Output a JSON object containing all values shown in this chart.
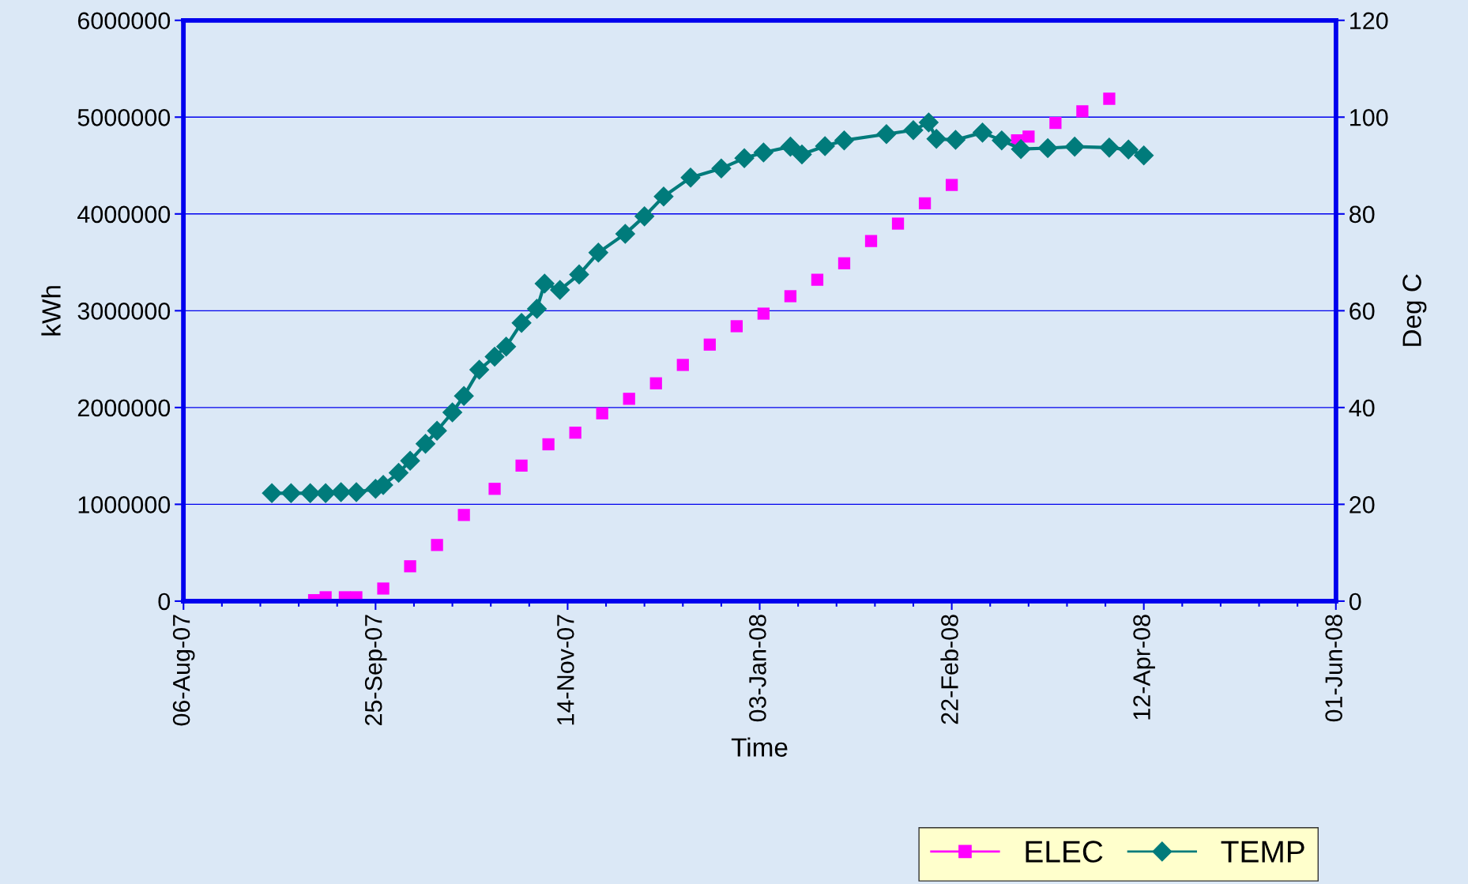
{
  "chart_data": {
    "type": "line",
    "xlabel": "Time",
    "ylabel": "kWh",
    "y2label": "Deg C",
    "xlim": [
      "2007-08-06",
      "2008-06-01"
    ],
    "xticks": [
      {
        "value": "2007-08-06",
        "label": "06-Aug-07"
      },
      {
        "value": "2007-09-25",
        "label": "25-Sep-07"
      },
      {
        "value": "2007-11-14",
        "label": "14-Nov-07"
      },
      {
        "value": "2008-01-03",
        "label": "03-Jan-08"
      },
      {
        "value": "2008-02-22",
        "label": "22-Feb-08"
      },
      {
        "value": "2008-04-12",
        "label": "12-Apr-08"
      },
      {
        "value": "2008-06-01",
        "label": "01-Jun-08"
      }
    ],
    "ylim": [
      0,
      6000000
    ],
    "yticks": [
      0,
      1000000,
      2000000,
      3000000,
      4000000,
      5000000,
      6000000
    ],
    "y2lim": [
      0,
      120
    ],
    "y2ticks": [
      0,
      20,
      40,
      60,
      80,
      100,
      120
    ],
    "grid": "y",
    "legend": "bottom right",
    "series": [
      {
        "name": "ELEC",
        "type": "scatter",
        "marker": "square",
        "color": "#ff00ff",
        "x": [
          "2007-09-09",
          "2007-09-12",
          "2007-09-17",
          "2007-09-20",
          "2007-09-27",
          "2007-10-04",
          "2007-10-11",
          "2007-10-18",
          "2007-10-26",
          "2007-11-02",
          "2007-11-09",
          "2007-11-16",
          "2007-11-23",
          "2007-11-30",
          "2007-12-07",
          "2007-12-14",
          "2007-12-21",
          "2007-12-28",
          "2008-01-04",
          "2008-01-11",
          "2008-01-18",
          "2008-01-25",
          "2008-02-01",
          "2008-02-08",
          "2008-02-15",
          "2008-02-22",
          "2008-03-10",
          "2008-03-13",
          "2008-03-20",
          "2008-03-27",
          "2008-04-03"
        ],
        "values": [
          10000,
          40000,
          40000,
          40000,
          130000,
          360000,
          580000,
          890000,
          1160000,
          1400000,
          1620000,
          1740000,
          1940000,
          2090000,
          2250000,
          2440000,
          2650000,
          2840000,
          2970000,
          3150000,
          3320000,
          3490000,
          3720000,
          3900000,
          4110000,
          4300000,
          4760000,
          4800000,
          4940000,
          5060000,
          5190000
        ]
      },
      {
        "name": "TEMP",
        "axis": "y2",
        "marker": "diamond",
        "line_style": "solid",
        "color": "#007b7b",
        "x": [
          "2007-08-29",
          "2007-09-03",
          "2007-09-08",
          "2007-09-12",
          "2007-09-16",
          "2007-09-20",
          "2007-09-25",
          "2007-09-27",
          "2007-10-01",
          "2007-10-04",
          "2007-10-08",
          "2007-10-11",
          "2007-10-15",
          "2007-10-18",
          "2007-10-22",
          "2007-10-26",
          "2007-10-29",
          "2007-11-02",
          "2007-11-06",
          "2007-11-08",
          "2007-11-12",
          "2007-11-17",
          "2007-11-22",
          "2007-11-29",
          "2007-12-04",
          "2007-12-09",
          "2007-12-16",
          "2007-12-24",
          "2007-12-30",
          "2008-01-04",
          "2008-01-11",
          "2008-01-14",
          "2008-01-20",
          "2008-01-25",
          "2008-02-05",
          "2008-02-12",
          "2008-02-16",
          "2008-02-18",
          "2008-02-23",
          "2008-03-01",
          "2008-03-06",
          "2008-03-11",
          "2008-03-18",
          "2008-03-25",
          "2008-04-03",
          "2008-04-08",
          "2008-04-12"
        ],
        "values": [
          22.3,
          22.3,
          22.3,
          22.3,
          22.5,
          22.5,
          23.2,
          24.0,
          26.5,
          29.0,
          32.5,
          35.2,
          39.0,
          42.4,
          47.8,
          50.5,
          52.6,
          57.5,
          60.4,
          65.6,
          64.3,
          67.5,
          72.0,
          75.9,
          79.5,
          83.6,
          87.5,
          89.4,
          91.5,
          92.7,
          93.9,
          92.3,
          94.0,
          95.2,
          96.5,
          97.3,
          98.9,
          95.5,
          95.3,
          96.8,
          95.2,
          93.4,
          93.6,
          93.9,
          93.7,
          93.3,
          92.1
        ]
      }
    ]
  }
}
